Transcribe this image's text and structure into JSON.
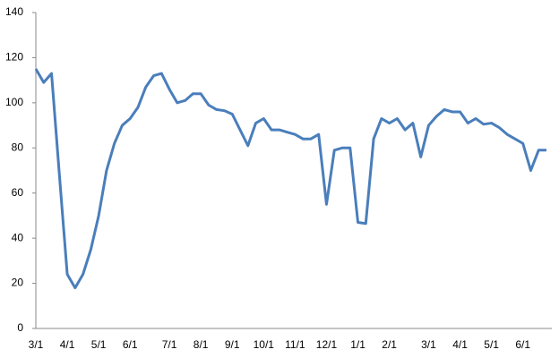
{
  "chart_data": {
    "type": "line",
    "categories": [
      "3/1",
      null,
      null,
      null,
      "4/1",
      null,
      null,
      null,
      "5/1",
      null,
      null,
      null,
      "6/1",
      null,
      null,
      null,
      null,
      "7/1",
      null,
      null,
      null,
      "8/1",
      null,
      null,
      null,
      "9/1",
      null,
      null,
      null,
      "10/1",
      null,
      null,
      null,
      "11/1",
      null,
      null,
      null,
      "12/1",
      null,
      null,
      null,
      "1/1",
      null,
      null,
      null,
      "2/1",
      null,
      null,
      null,
      null,
      "3/1",
      null,
      null,
      null,
      "4/1",
      null,
      null,
      null,
      "5/1",
      null,
      null,
      null,
      "6/1",
      null,
      null,
      null
    ],
    "series": [
      {
        "color": "#4a7ebb",
        "values": [
          115,
          109,
          113,
          68,
          24,
          18,
          24,
          35,
          50,
          70,
          82,
          90,
          93,
          98,
          107,
          112,
          113,
          106,
          100,
          101,
          104,
          104,
          99,
          97,
          96.5,
          95,
          88,
          81,
          91,
          93,
          88,
          88,
          87,
          86,
          84,
          84,
          86,
          55,
          79,
          80,
          80,
          47,
          46.5,
          84,
          93,
          91,
          93,
          88,
          91,
          76,
          90,
          94,
          97,
          96,
          96,
          91,
          93,
          90.5,
          91,
          89,
          86,
          84,
          82,
          70,
          79,
          79
        ]
      }
    ],
    "ylim": [
      0,
      140
    ],
    "yticks": [
      0,
      20,
      40,
      60,
      80,
      100,
      120,
      140
    ],
    "grid": false
  }
}
